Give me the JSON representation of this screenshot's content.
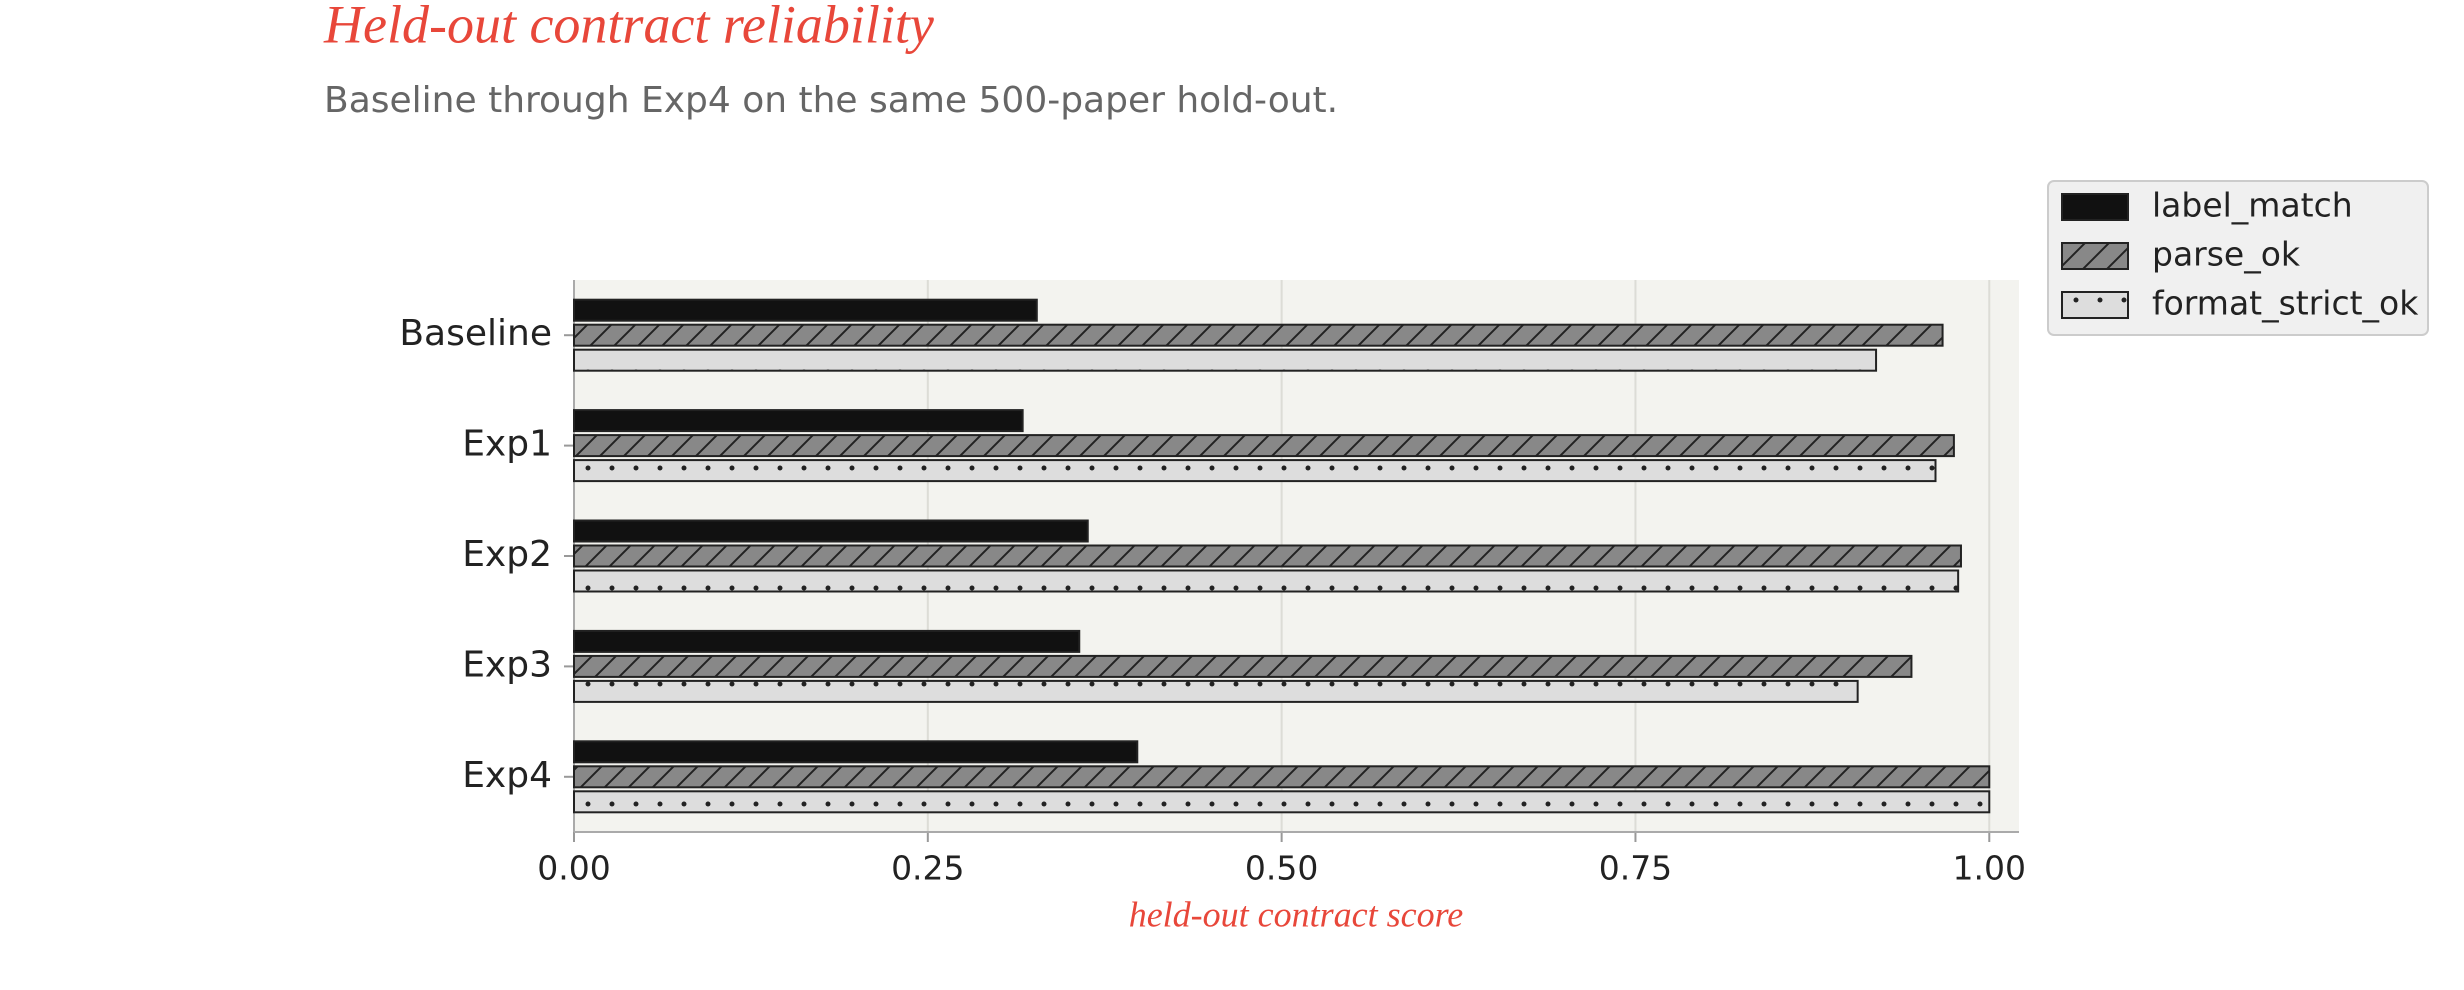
{
  "chart_data": {
    "type": "barh",
    "title": "Held-out contract reliability",
    "subtitle": "Baseline through Exp4 on the same 500-paper hold-out.",
    "xlabel": "held-out contract score",
    "categories": [
      "Baseline",
      "Exp1",
      "Exp2",
      "Exp3",
      "Exp4"
    ],
    "series": [
      {
        "name": "label_match",
        "color": "#111111",
        "hatch": "",
        "values": [
          0.327,
          0.317,
          0.363,
          0.357,
          0.398
        ]
      },
      {
        "name": "parse_ok",
        "color": "#888888",
        "hatch": "/",
        "values": [
          0.967,
          0.975,
          0.98,
          0.945,
          1.0
        ]
      },
      {
        "name": "format_strict_ok",
        "color": "#dddddd",
        "hatch": ".",
        "values": [
          0.92,
          0.962,
          0.978,
          0.907,
          1.0
        ]
      }
    ],
    "xlim": [
      0,
      1.021
    ],
    "xticks": [
      {
        "value": 0,
        "label": "0.00"
      },
      {
        "value": 0.25,
        "label": "0.25"
      },
      {
        "value": 0.5,
        "label": "0.50"
      },
      {
        "value": 0.75,
        "label": "0.75"
      },
      {
        "value": 1,
        "label": "1.00"
      }
    ],
    "grid": true,
    "legend": "upper right"
  }
}
